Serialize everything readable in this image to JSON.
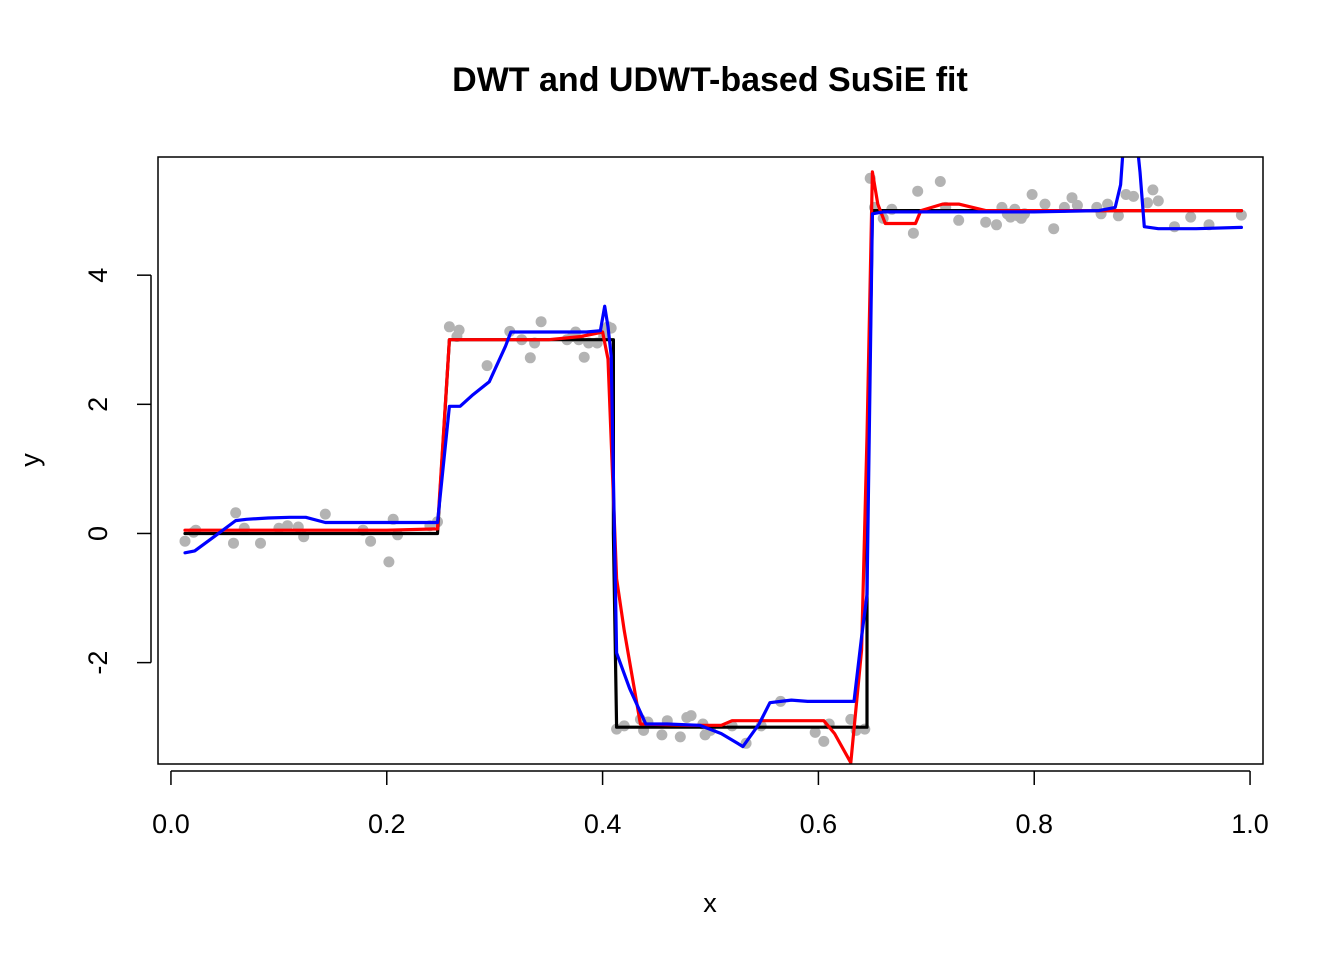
{
  "chart_data": {
    "type": "line",
    "title": "DWT and UDWT-based SuSiE fit",
    "xlabel": "x",
    "ylabel": "y",
    "xlim": [
      -0.012,
      1.012
    ],
    "ylim": [
      -3.57,
      5.83
    ],
    "xticks": [
      0.0,
      0.2,
      0.4,
      0.6,
      0.8,
      1.0
    ],
    "xtick_labels": [
      "0.0",
      "0.2",
      "0.4",
      "0.6",
      "0.8",
      "1.0"
    ],
    "yticks": [
      -2,
      0,
      2,
      4
    ],
    "ytick_labels": [
      "-2",
      "0",
      "2",
      "4"
    ],
    "grid": false,
    "legend": "none",
    "points": {
      "color": "#b3b3b3",
      "x": [
        0.013,
        0.021,
        0.023,
        0.058,
        0.06,
        0.068,
        0.083,
        0.1,
        0.108,
        0.118,
        0.123,
        0.143,
        0.178,
        0.185,
        0.202,
        0.206,
        0.21,
        0.24,
        0.247,
        0.258,
        0.265,
        0.267,
        0.293,
        0.314,
        0.325,
        0.333,
        0.337,
        0.343,
        0.367,
        0.372,
        0.375,
        0.378,
        0.383,
        0.387,
        0.395,
        0.401,
        0.403,
        0.405,
        0.408,
        0.413,
        0.42,
        0.435,
        0.438,
        0.442,
        0.455,
        0.46,
        0.472,
        0.478,
        0.482,
        0.493,
        0.495,
        0.5,
        0.52,
        0.533,
        0.547,
        0.565,
        0.597,
        0.605,
        0.61,
        0.63,
        0.635,
        0.643,
        0.648,
        0.652,
        0.66,
        0.668,
        0.688,
        0.692,
        0.713,
        0.718,
        0.73,
        0.755,
        0.765,
        0.77,
        0.775,
        0.778,
        0.782,
        0.785,
        0.788,
        0.791,
        0.798,
        0.81,
        0.818,
        0.828,
        0.835,
        0.84,
        0.858,
        0.862,
        0.868,
        0.878,
        0.885,
        0.892,
        0.905,
        0.91,
        0.915,
        0.93,
        0.945,
        0.962,
        0.992
      ],
      "y": [
        -0.12,
        0.02,
        0.05,
        -0.15,
        0.32,
        0.08,
        -0.15,
        0.08,
        0.12,
        0.1,
        -0.05,
        0.3,
        0.05,
        -0.12,
        -0.44,
        0.22,
        -0.02,
        0.12,
        0.18,
        3.2,
        3.05,
        3.15,
        2.6,
        3.13,
        3.0,
        2.72,
        2.95,
        3.28,
        3.0,
        3.05,
        3.12,
        3.0,
        2.73,
        2.95,
        2.95,
        3.05,
        3.15,
        3.2,
        3.18,
        -3.03,
        -2.98,
        -2.88,
        -3.05,
        -2.92,
        -3.12,
        -2.9,
        -3.15,
        -2.85,
        -2.82,
        -2.95,
        -3.12,
        -3.05,
        -2.98,
        -3.25,
        -2.98,
        -2.6,
        -3.08,
        -3.22,
        -2.95,
        -2.88,
        -3.05,
        -3.03,
        5.5,
        5.05,
        4.88,
        5.02,
        4.65,
        5.3,
        5.45,
        5.05,
        4.85,
        4.82,
        4.78,
        5.05,
        4.95,
        4.9,
        5.02,
        4.92,
        4.88,
        4.95,
        5.25,
        5.1,
        4.72,
        5.05,
        5.2,
        5.08,
        5.05,
        4.95,
        5.1,
        4.92,
        5.25,
        5.22,
        5.12,
        5.32,
        5.15,
        4.75,
        4.9,
        4.78,
        4.93
      ]
    },
    "series": [
      {
        "color": "#000000",
        "x": [
          0.013,
          0.247,
          0.247,
          0.258,
          0.41,
          0.41,
          0.413,
          0.645,
          0.645,
          0.65,
          0.992
        ],
        "y": [
          0,
          0,
          0,
          3,
          3,
          0,
          -3,
          -3,
          0,
          5,
          5
        ]
      },
      {
        "color": "#ff0000",
        "x": [
          0.013,
          0.05,
          0.1,
          0.15,
          0.2,
          0.247,
          0.258,
          0.27,
          0.31,
          0.35,
          0.38,
          0.4,
          0.405,
          0.413,
          0.42,
          0.435,
          0.48,
          0.51,
          0.52,
          0.56,
          0.605,
          0.615,
          0.63,
          0.64,
          0.645,
          0.65,
          0.655,
          0.662,
          0.672,
          0.68,
          0.69,
          0.695,
          0.715,
          0.73,
          0.755,
          0.78,
          0.85,
          0.9,
          0.95,
          0.992
        ],
        "y": [
          0.05,
          0.05,
          0.05,
          0.05,
          0.05,
          0.07,
          3.0,
          3.0,
          3.0,
          3.0,
          3.05,
          3.12,
          2.7,
          -0.7,
          -1.5,
          -2.95,
          -2.97,
          -2.97,
          -2.9,
          -2.9,
          -2.9,
          -3.1,
          -3.55,
          -1.8,
          1.5,
          5.6,
          5.1,
          4.8,
          4.8,
          4.8,
          4.8,
          5.0,
          5.1,
          5.1,
          5.0,
          5.0,
          5.0,
          5.0,
          5.0,
          5.0
        ]
      },
      {
        "color": "#0000ff",
        "x": [
          0.013,
          0.022,
          0.04,
          0.06,
          0.07,
          0.09,
          0.11,
          0.125,
          0.143,
          0.165,
          0.2,
          0.23,
          0.247,
          0.258,
          0.268,
          0.28,
          0.295,
          0.31,
          0.315,
          0.325,
          0.34,
          0.36,
          0.385,
          0.398,
          0.402,
          0.405,
          0.408,
          0.413,
          0.425,
          0.44,
          0.46,
          0.49,
          0.51,
          0.525,
          0.53,
          0.545,
          0.555,
          0.565,
          0.575,
          0.59,
          0.61,
          0.633,
          0.64,
          0.645,
          0.65,
          0.66,
          0.7,
          0.8,
          0.86,
          0.875,
          0.88,
          0.883,
          0.886,
          0.89,
          0.895,
          0.898,
          0.902,
          0.915,
          0.95,
          0.992
        ],
        "y": [
          -0.3,
          -0.27,
          -0.05,
          0.2,
          0.22,
          0.24,
          0.25,
          0.25,
          0.17,
          0.17,
          0.17,
          0.17,
          0.17,
          1.97,
          1.97,
          2.15,
          2.35,
          2.9,
          3.12,
          3.12,
          3.12,
          3.12,
          3.12,
          3.14,
          3.52,
          3.2,
          2.75,
          -1.85,
          -2.4,
          -2.95,
          -2.95,
          -2.97,
          -3.1,
          -3.25,
          -3.3,
          -2.95,
          -2.62,
          -2.6,
          -2.58,
          -2.6,
          -2.6,
          -2.6,
          -1.6,
          -0.95,
          4.95,
          4.98,
          4.98,
          4.98,
          5.0,
          5.05,
          5.4,
          6.1,
          6.6,
          6.6,
          6.1,
          5.6,
          4.75,
          4.72,
          4.72,
          4.74
        ]
      }
    ]
  }
}
